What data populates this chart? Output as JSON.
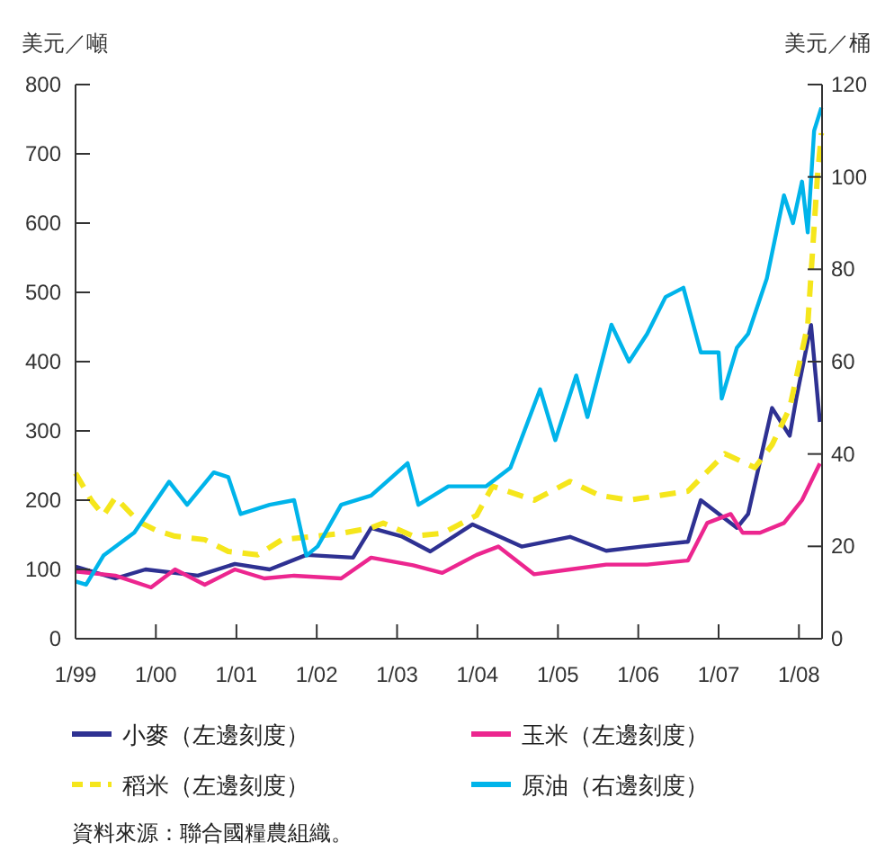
{
  "chart_data": {
    "type": "line",
    "ylabel": "美元／噸",
    "y2label": "美元／桶",
    "xlim": [
      "1999-01-01",
      "2008-04-15"
    ],
    "xticks": [
      {
        "value": "1999-01-01",
        "label": "1/99"
      },
      {
        "value": "2000-01-01",
        "label": "1/00"
      },
      {
        "value": "2001-01-01",
        "label": "1/01"
      },
      {
        "value": "2002-01-01",
        "label": "1/02"
      },
      {
        "value": "2003-01-01",
        "label": "1/03"
      },
      {
        "value": "2004-01-01",
        "label": "1/04"
      },
      {
        "value": "2005-01-01",
        "label": "1/05"
      },
      {
        "value": "2006-01-01",
        "label": "1/06"
      },
      {
        "value": "2007-01-01",
        "label": "1/07"
      },
      {
        "value": "2008-01-01",
        "label": "1/08"
      }
    ],
    "ylim": [
      0,
      800
    ],
    "yticks": [
      0,
      100,
      200,
      300,
      400,
      500,
      600,
      700,
      800
    ],
    "y2lim": [
      0,
      120
    ],
    "y2ticks": [
      0,
      20,
      40,
      60,
      80,
      100,
      120
    ],
    "grid": false,
    "legend": "bottom",
    "series": [
      {
        "name": "小麥（左邊刻度）",
        "color": "#2e3192",
        "line_style": "solid",
        "x": [
          "1999-01-01",
          "1999-07-01",
          "1999-11-15",
          "2000-07-10",
          "2000-12-25",
          "2001-06-01",
          "2001-11-15",
          "2002-06-15",
          "2002-09-05",
          "2003-01-20",
          "2003-06-01",
          "2003-12-10",
          "2004-07-20",
          "2005-02-25",
          "2005-08-08",
          "2006-01-15",
          "2006-08-15",
          "2006-10-12",
          "2007-03-25",
          "2007-05-15",
          "2007-09-01",
          "2007-11-20",
          "2007-12-20",
          "2008-02-25",
          "2008-04-05"
        ],
        "values": [
          104,
          87,
          100,
          91,
          108,
          100,
          121,
          117,
          160,
          148,
          126,
          165,
          133,
          147,
          127,
          133,
          140,
          200,
          160,
          180,
          333,
          293,
          347,
          453,
          313
        ]
      },
      {
        "name": "玉米（左邊刻度）",
        "color": "#ec268f",
        "line_style": "solid",
        "x": [
          "1999-01-01",
          "1999-07-01",
          "1999-12-10",
          "2000-03-28",
          "2000-08-10",
          "2000-12-25",
          "2001-05-08",
          "2001-09-20",
          "2002-04-22",
          "2002-09-05",
          "2003-03-15",
          "2003-07-25",
          "2003-12-28",
          "2004-04-05",
          "2004-09-15",
          "2005-02-25",
          "2005-08-08",
          "2006-02-10",
          "2006-08-15",
          "2006-11-10",
          "2007-02-25",
          "2007-04-20",
          "2007-07-08",
          "2007-10-25",
          "2008-01-15",
          "2008-04-05"
        ],
        "values": [
          97,
          91,
          74,
          100,
          78,
          100,
          87,
          91,
          87,
          117,
          106,
          95,
          121,
          133,
          93,
          100,
          107,
          107,
          113,
          167,
          180,
          153,
          153,
          167,
          200,
          253
        ]
      },
      {
        "name": "稻米（左邊刻度）",
        "color": "#f5e61c",
        "line_style": "dashed",
        "x": [
          "1999-01-01",
          "1999-03-15",
          "1999-05-08",
          "1999-07-01",
          "1999-10-15",
          "2000-01-05",
          "2000-03-28",
          "2000-08-10",
          "2000-11-25",
          "2001-04-08",
          "2001-07-27",
          "2001-12-28",
          "2002-04-22",
          "2002-09-05",
          "2002-10-30",
          "2003-03-15",
          "2003-07-25",
          "2003-12-28",
          "2004-03-10",
          "2004-09-15",
          "2005-02-25",
          "2005-07-08",
          "2005-11-20",
          "2006-08-15",
          "2007-01-30",
          "2007-06-15",
          "2007-09-01",
          "2007-11-20",
          "2008-02-10",
          "2008-03-25",
          "2008-04-12"
        ],
        "values": [
          239,
          199,
          178,
          204,
          169,
          156,
          148,
          143,
          126,
          121,
          143,
          148,
          152,
          160,
          167,
          148,
          152,
          178,
          220,
          200,
          227,
          207,
          200,
          213,
          267,
          247,
          280,
          333,
          453,
          667,
          730
        ]
      },
      {
        "name": "原油（右邊刻度）",
        "color": "#00b4ea",
        "line_style": "solid",
        "axis": "y2",
        "x": [
          "1999-01-01",
          "1999-02-18",
          "1999-05-08",
          "1999-09-25",
          "2000-03-01",
          "2000-05-22",
          "2000-09-20",
          "2000-11-25",
          "2001-01-20",
          "2001-06-01",
          "2001-09-20",
          "2001-11-15",
          "2002-01-05",
          "2002-04-22",
          "2002-09-05",
          "2003-02-18",
          "2003-04-08",
          "2003-08-22",
          "2004-02-10",
          "2004-05-30",
          "2004-10-12",
          "2004-12-20",
          "2005-03-25",
          "2005-05-15",
          "2005-09-01",
          "2005-11-20",
          "2006-02-10",
          "2006-05-05",
          "2006-07-25",
          "2006-10-12",
          "2007-01-01",
          "2007-01-15",
          "2007-03-25",
          "2007-05-15",
          "2007-08-08",
          "2007-10-25",
          "2007-12-05",
          "2008-01-15",
          "2008-02-10",
          "2008-03-10",
          "2008-04-12"
        ],
        "values": [
          12.4,
          11.7,
          18,
          23,
          34,
          29,
          36,
          35,
          27,
          29,
          30,
          18,
          20,
          29,
          31,
          38,
          29,
          33,
          33,
          37,
          54,
          43,
          57,
          48,
          68,
          60,
          66,
          74,
          76,
          62,
          62,
          52,
          63,
          66,
          78,
          96,
          90,
          99,
          88,
          110,
          115
        ]
      }
    ],
    "annotations": [
      "資料來源：聯合國糧農組織。"
    ]
  }
}
